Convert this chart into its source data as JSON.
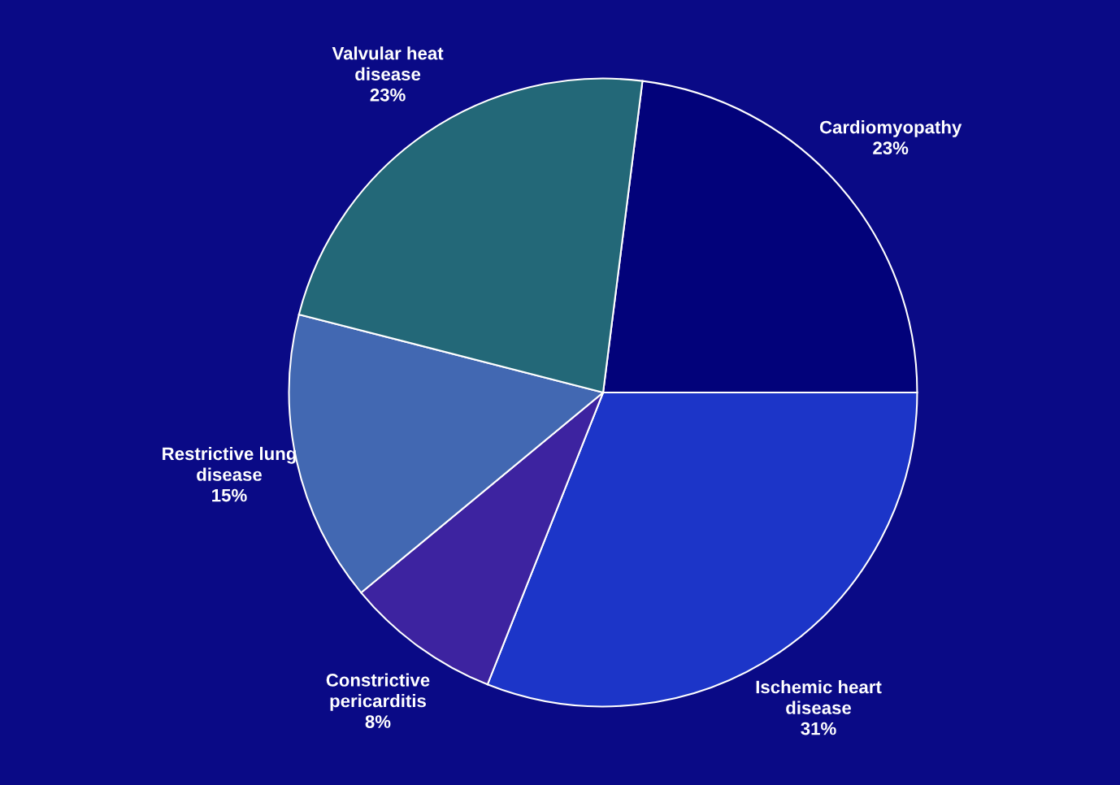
{
  "chart_data": {
    "type": "pie",
    "categories": [
      "Cardiomyopathy",
      "Ischemic heart\ndisease",
      "Constrictive\npericarditis",
      "Restrictive lung\ndisease",
      "Valvular heat\ndisease"
    ],
    "values": [
      23,
      31,
      8,
      15,
      23
    ],
    "value_labels": [
      "23%",
      "31%",
      "8%",
      "15%",
      "23%"
    ],
    "colors": [
      "#02027a",
      "#1c35c8",
      "#3d23a0",
      "#4268b2",
      "#236878"
    ]
  }
}
